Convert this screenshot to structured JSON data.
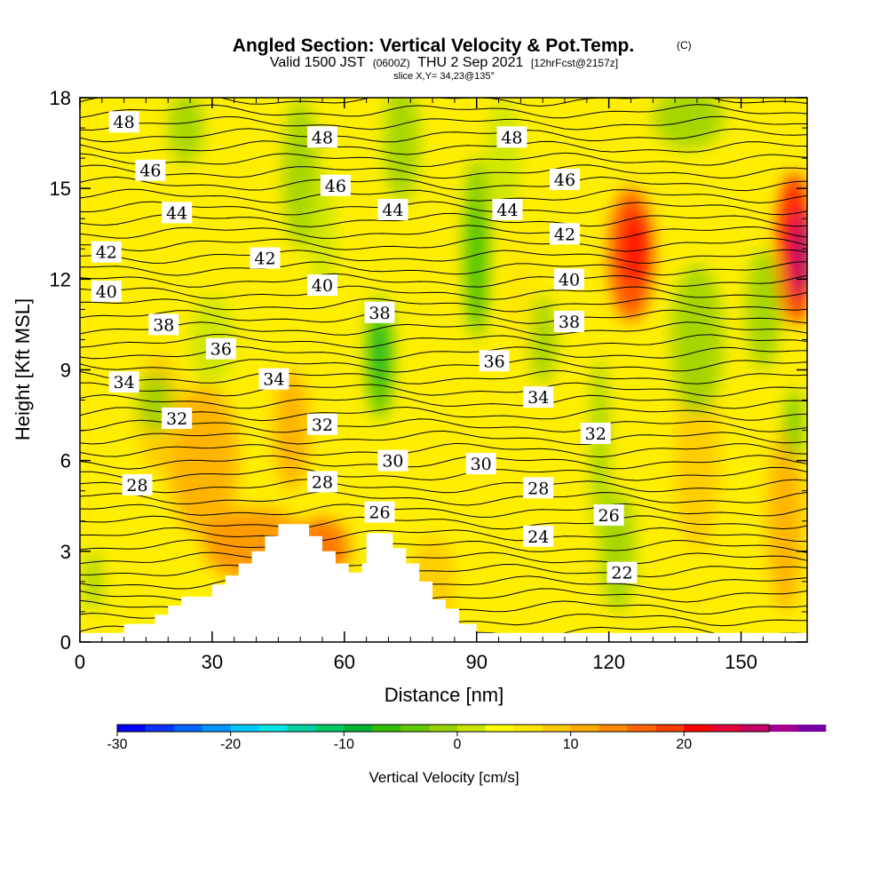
{
  "title": {
    "main": "Angled Section: Vertical Velocity & Pot.Temp.",
    "main_suffix": "(C)",
    "valid_prefix": "Valid 1500 JST",
    "valid_utc": "(0600Z)",
    "valid_date": "THU 2 Sep 2021",
    "forecast": "[12hrFcst@2157z]",
    "slice": "slice X,Y= 34,23@135°"
  },
  "chart_data": {
    "type": "heatmap",
    "xlabel": "Distance [nm]",
    "ylabel": "Height [Kft MSL]",
    "xlim": [
      0,
      165
    ],
    "ylim": [
      0,
      18
    ],
    "x_ticks": [
      0,
      30,
      60,
      90,
      120,
      150
    ],
    "y_ticks": [
      0,
      3,
      6,
      9,
      12,
      15,
      18
    ],
    "colorbar": {
      "label": "Vertical Velocity [cm/s]",
      "min": -30,
      "max": 27.5,
      "step": 2.5,
      "ticks": [
        -30,
        -20,
        -10,
        0,
        10,
        20
      ],
      "colors": [
        "#0000ff",
        "#0a32ff",
        "#0064ff",
        "#0096ff",
        "#00c8ff",
        "#00e6e6",
        "#00d2a0",
        "#00c864",
        "#00b432",
        "#32be00",
        "#64c800",
        "#96d200",
        "#c8e600",
        "#ffff00",
        "#ffe600",
        "#ffc800",
        "#ffaa00",
        "#ff8c00",
        "#ff6400",
        "#ff3c00",
        "#ff0000",
        "#e6003c",
        "#c80064",
        "#a0008c",
        "#7800a0"
      ]
    },
    "contour_variable": "Potential temperature (C)",
    "contour_labels": [
      {
        "value": "48",
        "x": 10,
        "y": 17.2
      },
      {
        "value": "48",
        "x": 55,
        "y": 16.7
      },
      {
        "value": "48",
        "x": 98,
        "y": 16.7
      },
      {
        "value": "46",
        "x": 16,
        "y": 15.6
      },
      {
        "value": "46",
        "x": 58,
        "y": 15.1
      },
      {
        "value": "46",
        "x": 110,
        "y": 15.3
      },
      {
        "value": "44",
        "x": 22,
        "y": 14.2
      },
      {
        "value": "44",
        "x": 71,
        "y": 14.3
      },
      {
        "value": "44",
        "x": 97,
        "y": 14.3
      },
      {
        "value": "42",
        "x": 6,
        "y": 12.9
      },
      {
        "value": "42",
        "x": 42,
        "y": 12.7
      },
      {
        "value": "42",
        "x": 110,
        "y": 13.5
      },
      {
        "value": "40",
        "x": 6,
        "y": 11.6
      },
      {
        "value": "40",
        "x": 55,
        "y": 11.8
      },
      {
        "value": "40",
        "x": 111,
        "y": 12.0
      },
      {
        "value": "38",
        "x": 19,
        "y": 10.5
      },
      {
        "value": "38",
        "x": 68,
        "y": 10.9
      },
      {
        "value": "38",
        "x": 111,
        "y": 10.6
      },
      {
        "value": "36",
        "x": 32,
        "y": 9.7
      },
      {
        "value": "36",
        "x": 94,
        "y": 9.3
      },
      {
        "value": "34",
        "x": 10,
        "y": 8.6
      },
      {
        "value": "34",
        "x": 44,
        "y": 8.7
      },
      {
        "value": "34",
        "x": 104,
        "y": 8.1
      },
      {
        "value": "32",
        "x": 22,
        "y": 7.4
      },
      {
        "value": "32",
        "x": 55,
        "y": 7.2
      },
      {
        "value": "32",
        "x": 117,
        "y": 6.9
      },
      {
        "value": "30",
        "x": 71,
        "y": 6.0
      },
      {
        "value": "30",
        "x": 91,
        "y": 5.9
      },
      {
        "value": "28",
        "x": 13,
        "y": 5.2
      },
      {
        "value": "28",
        "x": 55,
        "y": 5.3
      },
      {
        "value": "28",
        "x": 104,
        "y": 5.1
      },
      {
        "value": "26",
        "x": 68,
        "y": 4.3
      },
      {
        "value": "26",
        "x": 120,
        "y": 4.2
      },
      {
        "value": "24",
        "x": 104,
        "y": 3.5
      },
      {
        "value": "22",
        "x": 123,
        "y": 2.3
      }
    ],
    "terrain_profile": [
      [
        0,
        0
      ],
      [
        0,
        0.3
      ],
      [
        10,
        0.3
      ],
      [
        10,
        0.6
      ],
      [
        17,
        0.6
      ],
      [
        17,
        0.9
      ],
      [
        20,
        0.9
      ],
      [
        20,
        1.2
      ],
      [
        23,
        1.2
      ],
      [
        23,
        1.5
      ],
      [
        30,
        1.5
      ],
      [
        30,
        1.9
      ],
      [
        33,
        1.9
      ],
      [
        33,
        2.2
      ],
      [
        36,
        2.2
      ],
      [
        36,
        2.6
      ],
      [
        39,
        2.6
      ],
      [
        39,
        3.0
      ],
      [
        42,
        3.0
      ],
      [
        42,
        3.5
      ],
      [
        45,
        3.5
      ],
      [
        45,
        3.9
      ],
      [
        52,
        3.9
      ],
      [
        52,
        3.5
      ],
      [
        55,
        3.5
      ],
      [
        55,
        3.0
      ],
      [
        58,
        3.0
      ],
      [
        58,
        2.6
      ],
      [
        61,
        2.6
      ],
      [
        61,
        2.3
      ],
      [
        64,
        2.3
      ],
      [
        64,
        2.6
      ],
      [
        65,
        2.6
      ],
      [
        65,
        3.6
      ],
      [
        71,
        3.6
      ],
      [
        71,
        3.1
      ],
      [
        74,
        3.1
      ],
      [
        74,
        2.6
      ],
      [
        77,
        2.6
      ],
      [
        77,
        2.0
      ],
      [
        80,
        2.0
      ],
      [
        80,
        1.4
      ],
      [
        83,
        1.4
      ],
      [
        83,
        1.1
      ],
      [
        86,
        1.1
      ],
      [
        86,
        0.6
      ],
      [
        90,
        0.6
      ],
      [
        90,
        0.3
      ],
      [
        165,
        0.3
      ],
      [
        165,
        0
      ]
    ]
  }
}
